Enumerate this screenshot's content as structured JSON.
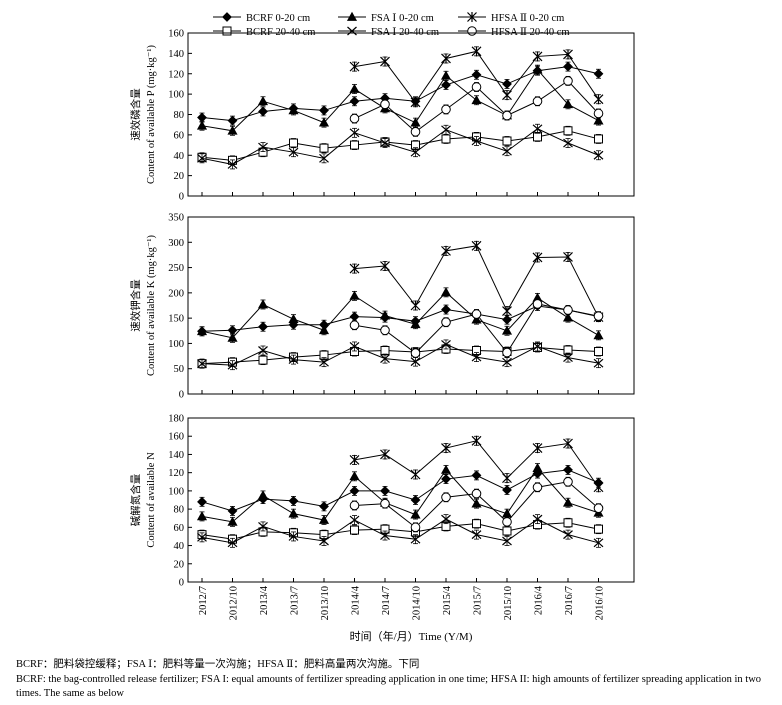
{
  "legend": [
    {
      "label": "BCRF 0-20 cm",
      "marker": "diamond",
      "fill": "black"
    },
    {
      "label": "FSA Ⅰ 0-20 cm",
      "marker": "triangle",
      "fill": "black"
    },
    {
      "label": "HFSA Ⅱ 0-20 cm",
      "marker": "star",
      "fill": "black"
    },
    {
      "label": "BCRF 20-40 cm",
      "marker": "square",
      "fill": "white"
    },
    {
      "label": "FSA Ⅰ 20-40 cm",
      "marker": "cross",
      "fill": "white"
    },
    {
      "label": "HFSA Ⅱ 20-40 cm",
      "marker": "circle",
      "fill": "white"
    }
  ],
  "chart_data": [
    {
      "type": "line",
      "title": "",
      "xlabel": "",
      "ylabel_cn": "速效磷含量",
      "ylabel_en": "Content of available P (mg·kg⁻¹)",
      "ylim": [
        0,
        160
      ],
      "yticks": [
        0,
        20,
        40,
        60,
        80,
        100,
        120,
        140,
        160
      ],
      "categories": [
        "2012/7",
        "2012/10",
        "2013/4",
        "2013/7",
        "2013/10",
        "2014/4",
        "2014/7",
        "2014/10",
        "2015/4",
        "2015/7",
        "2015/10",
        "2016/4",
        "2016/7",
        "2016/10"
      ],
      "series": [
        {
          "name": "BCRF 0-20 cm",
          "marker": "diamond",
          "values": [
            77,
            74,
            83,
            86,
            84,
            93,
            96,
            93,
            109,
            119,
            110,
            123,
            127,
            120
          ]
        },
        {
          "name": "FSA Ⅰ 0-20 cm",
          "marker": "triangle",
          "values": [
            69,
            64,
            93,
            84,
            72,
            105,
            86,
            72,
            118,
            94,
            79,
            124,
            90,
            74
          ]
        },
        {
          "name": "HFSA Ⅱ 0-20 cm",
          "marker": "star",
          "values": [
            null,
            null,
            null,
            null,
            null,
            127,
            132,
            92,
            135,
            142,
            99,
            137,
            139,
            95
          ]
        },
        {
          "name": "BCRF 20-40 cm",
          "marker": "square",
          "values": [
            38,
            35,
            43,
            52,
            47,
            50,
            53,
            50,
            56,
            58,
            54,
            58,
            64,
            56
          ]
        },
        {
          "name": "FSA Ⅰ 20-40 cm",
          "marker": "cross",
          "values": [
            37,
            31,
            48,
            43,
            37,
            62,
            52,
            43,
            65,
            54,
            44,
            66,
            52,
            40
          ]
        },
        {
          "name": "HFSA Ⅱ 20-40 cm",
          "marker": "circle",
          "values": [
            null,
            null,
            null,
            null,
            null,
            76,
            90,
            63,
            85,
            107,
            79,
            93,
            113,
            81
          ]
        }
      ]
    },
    {
      "type": "line",
      "title": "",
      "xlabel": "",
      "ylabel_cn": "速效钾含量",
      "ylabel_en": "Content of available K (mg·kg⁻¹)",
      "ylim": [
        0,
        350
      ],
      "yticks": [
        0,
        50,
        100,
        150,
        200,
        250,
        300,
        350
      ],
      "categories": [
        "2012/7",
        "2012/10",
        "2013/4",
        "2013/7",
        "2013/10",
        "2014/4",
        "2014/7",
        "2014/10",
        "2015/4",
        "2015/7",
        "2015/10",
        "2016/4",
        "2016/7",
        "2016/10"
      ],
      "series": [
        {
          "name": "BCRF 0-20 cm",
          "marker": "diamond",
          "values": [
            124,
            126,
            133,
            137,
            137,
            153,
            151,
            144,
            167,
            158,
            147,
            174,
            166,
            153
          ]
        },
        {
          "name": "FSA Ⅰ 0-20 cm",
          "marker": "triangle",
          "values": [
            124,
            111,
            177,
            148,
            126,
            194,
            155,
            138,
            201,
            147,
            125,
            190,
            151,
            116
          ]
        },
        {
          "name": "HFSA Ⅱ 0-20 cm",
          "marker": "star",
          "values": [
            null,
            null,
            null,
            null,
            null,
            248,
            253,
            175,
            283,
            293,
            164,
            270,
            271,
            152
          ]
        },
        {
          "name": "BCRF 20-40 cm",
          "marker": "square",
          "values": [
            60,
            63,
            67,
            73,
            77,
            84,
            86,
            83,
            89,
            86,
            84,
            92,
            87,
            84
          ]
        },
        {
          "name": "FSA Ⅰ 20-40 cm",
          "marker": "cross",
          "values": [
            60,
            57,
            86,
            68,
            63,
            94,
            70,
            64,
            98,
            73,
            63,
            94,
            72,
            61
          ]
        },
        {
          "name": "HFSA Ⅱ 20-40 cm",
          "marker": "circle",
          "values": [
            null,
            null,
            null,
            null,
            null,
            136,
            126,
            81,
            142,
            158,
            82,
            178,
            166,
            154
          ]
        }
      ]
    },
    {
      "type": "line",
      "title": "",
      "xlabel": "",
      "ylabel_cn": "碱解氮含量",
      "ylabel_en": "Content of available N",
      "ylim": [
        0,
        180
      ],
      "yticks": [
        0,
        20,
        40,
        60,
        80,
        100,
        120,
        140,
        160,
        180
      ],
      "categories": [
        "2012/7",
        "2012/10",
        "2013/4",
        "2013/7",
        "2013/10",
        "2014/4",
        "2014/7",
        "2014/10",
        "2015/4",
        "2015/7",
        "2015/10",
        "2016/4",
        "2016/7",
        "2016/10"
      ],
      "series": [
        {
          "name": "BCRF 0-20 cm",
          "marker": "diamond",
          "values": [
            88,
            78,
            91,
            89,
            83,
            100,
            100,
            90,
            113,
            117,
            101,
            119,
            123,
            109
          ]
        },
        {
          "name": "FSA Ⅰ 0-20 cm",
          "marker": "triangle",
          "values": [
            72,
            66,
            95,
            75,
            68,
            116,
            87,
            74,
            123,
            86,
            75,
            125,
            87,
            76
          ]
        },
        {
          "name": "HFSA Ⅱ 0-20 cm",
          "marker": "star",
          "values": [
            null,
            null,
            null,
            null,
            null,
            134,
            140,
            118,
            147,
            155,
            114,
            147,
            152,
            104
          ]
        },
        {
          "name": "BCRF 20-40 cm",
          "marker": "square",
          "values": [
            52,
            47,
            55,
            54,
            52,
            57,
            58,
            55,
            61,
            64,
            56,
            63,
            65,
            58
          ]
        },
        {
          "name": "FSA Ⅰ 20-40 cm",
          "marker": "cross",
          "values": [
            49,
            43,
            61,
            50,
            45,
            68,
            51,
            47,
            69,
            52,
            45,
            69,
            52,
            43
          ]
        },
        {
          "name": "HFSA Ⅱ 20-40 cm",
          "marker": "circle",
          "values": [
            null,
            null,
            null,
            null,
            null,
            84,
            86,
            60,
            93,
            97,
            66,
            104,
            110,
            81
          ]
        }
      ]
    }
  ],
  "xaxis_title": "时间（年/月）Time (Y/M)",
  "captions": [
    "BCRF：肥料袋控缓释；FSA Ⅰ：肥料等量一次沟施；HFSA Ⅱ：肥料高量两次沟施。下同",
    "BCRF: the bag-controlled release fertilizer; FSA I: equal amounts of fertilizer spreading application in one time; HFSA II: high amounts of fertilizer spreading application in two times. The same as below"
  ]
}
